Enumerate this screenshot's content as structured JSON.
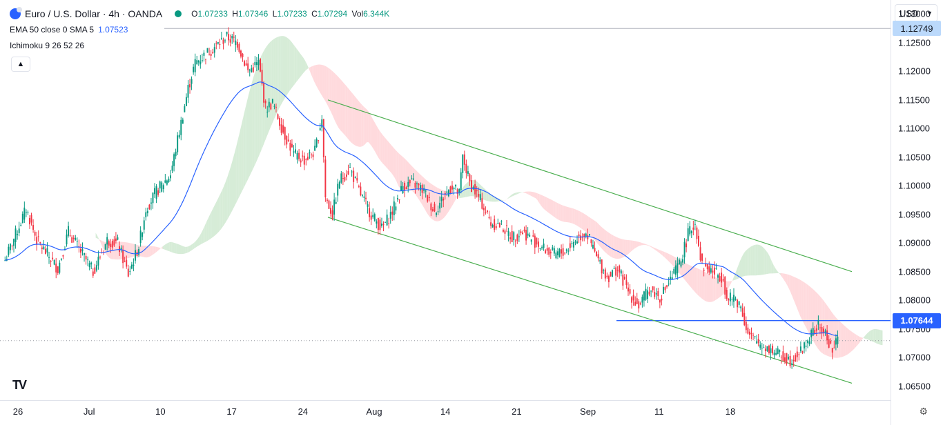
{
  "symbol": {
    "title": "Euro / U.S. Dollar · 4h · OANDA",
    "open_label": "O",
    "open": "1.07233",
    "high_label": "H",
    "high": "1.07346",
    "low_label": "L",
    "low": "1.07233",
    "close_label": "C",
    "close": "1.07294",
    "vol_label": "Vol",
    "vol": "6.344K"
  },
  "indicators": [
    {
      "label": "EMA 50 close 0 SMA 5",
      "value": "1.07523"
    },
    {
      "label": "Ichimoku 9 26 52 26",
      "value": ""
    }
  ],
  "collapse_icon": "chevron-up-icon",
  "currency_selector": {
    "label": "USD",
    "icon": "chevron-down-icon"
  },
  "colors": {
    "up": "#089981",
    "down": "#f23645",
    "ema": "#2962ff",
    "channel": "#4caf50",
    "cloud_bull": "#c8e6c9",
    "cloud_bear": "#ffcdd2",
    "hline": "#2962ff"
  },
  "price_axis": {
    "labels": [
      "1.13000",
      "1.12500",
      "1.12000",
      "1.11500",
      "1.11000",
      "1.10500",
      "1.10000",
      "1.09500",
      "1.09000",
      "1.08500",
      "1.08000",
      "1.07500",
      "1.07000",
      "1.06500"
    ],
    "marker_high": "1.12749",
    "marker_line": "1.07644"
  },
  "time_axis": {
    "labels": [
      "26",
      "Jul",
      "10",
      "17",
      "24",
      "Aug",
      "14",
      "21",
      "Sep",
      "11",
      "18"
    ],
    "settings_icon": "gear-icon"
  },
  "chart_data": {
    "type": "candlestick",
    "instrument": "EURUSD",
    "timeframe": "4h",
    "y_range": [
      1.0635,
      1.1315
    ],
    "horizontal_lines": [
      1.12749,
      1.07644
    ],
    "last_price": 1.07294,
    "ema_last": 1.07523,
    "anchor_prices": [
      [
        0,
        1.087
      ],
      [
        6,
        1.0915
      ],
      [
        12,
        1.096
      ],
      [
        18,
        1.0905
      ],
      [
        24,
        1.088
      ],
      [
        30,
        1.0855
      ],
      [
        36,
        1.092
      ],
      [
        42,
        1.089
      ],
      [
        50,
        1.085
      ],
      [
        58,
        1.0905
      ],
      [
        64,
        1.09
      ],
      [
        70,
        1.0845
      ],
      [
        76,
        1.0895
      ],
      [
        80,
        1.096
      ],
      [
        86,
        1.099
      ],
      [
        94,
        1.102
      ],
      [
        100,
        1.111
      ],
      [
        104,
        1.117
      ],
      [
        108,
        1.1215
      ],
      [
        114,
        1.123
      ],
      [
        120,
        1.1245
      ],
      [
        126,
        1.126
      ],
      [
        132,
        1.125
      ],
      [
        138,
        1.12
      ],
      [
        144,
        1.1215
      ],
      [
        148,
        1.1135
      ],
      [
        152,
        1.1145
      ],
      [
        158,
        1.1095
      ],
      [
        164,
        1.1055
      ],
      [
        170,
        1.1045
      ],
      [
        176,
        1.106
      ],
      [
        180,
        1.112
      ],
      [
        182,
        1.098
      ],
      [
        186,
        1.095
      ],
      [
        190,
        1.101
      ],
      [
        196,
        1.103
      ],
      [
        202,
        1.0985
      ],
      [
        208,
        1.095
      ],
      [
        214,
        1.0925
      ],
      [
        220,
        1.0955
      ],
      [
        226,
        1.1
      ],
      [
        232,
        1.1005
      ],
      [
        238,
        1.099
      ],
      [
        244,
        1.0955
      ],
      [
        250,
        1.0985
      ],
      [
        254,
        1.1
      ],
      [
        258,
        1.0985
      ],
      [
        260,
        1.105
      ],
      [
        264,
        1.1005
      ],
      [
        270,
        1.0975
      ],
      [
        276,
        1.0935
      ],
      [
        282,
        1.093
      ],
      [
        288,
        1.091
      ],
      [
        294,
        1.092
      ],
      [
        300,
        1.0905
      ],
      [
        306,
        1.089
      ],
      [
        312,
        1.088
      ],
      [
        318,
        1.0885
      ],
      [
        324,
        1.0905
      ],
      [
        330,
        1.092
      ],
      [
        336,
        1.0875
      ],
      [
        342,
        1.084
      ],
      [
        348,
        1.0855
      ],
      [
        354,
        1.0815
      ],
      [
        360,
        1.079
      ],
      [
        366,
        1.082
      ],
      [
        372,
        1.0805
      ],
      [
        378,
        1.0835
      ],
      [
        384,
        1.087
      ],
      [
        388,
        1.0915
      ],
      [
        392,
        1.0935
      ],
      [
        396,
        1.086
      ],
      [
        402,
        1.085
      ],
      [
        408,
        1.084
      ],
      [
        410,
        1.08
      ],
      [
        414,
        1.0805
      ],
      [
        418,
        1.079
      ],
      [
        422,
        1.074
      ],
      [
        428,
        1.0725
      ],
      [
        434,
        1.0715
      ],
      [
        440,
        1.0705
      ],
      [
        446,
        1.0695
      ],
      [
        452,
        1.071
      ],
      [
        458,
        1.074
      ],
      [
        462,
        1.0755
      ],
      [
        466,
        1.074
      ],
      [
        470,
        1.0712
      ],
      [
        473,
        1.0729
      ]
    ],
    "ichimoku_cloud_bias": [
      {
        "from_bar": 90,
        "to_bar": 170,
        "type": "bullish"
      },
      {
        "from_bar": 170,
        "to_bar": 500,
        "type": "bearish"
      }
    ],
    "channel": {
      "upper": [
        [
          180,
          1.115
        ],
        [
          460,
          1.085
        ]
      ],
      "lower": [
        [
          180,
          1.0945
        ],
        [
          460,
          1.0655
        ]
      ]
    },
    "x_labels": [
      "26",
      "Jul",
      "10",
      "17",
      "24",
      "Aug",
      "14",
      "21",
      "Sep",
      "11",
      "18"
    ]
  },
  "branding": {
    "logo_text": "TV"
  }
}
